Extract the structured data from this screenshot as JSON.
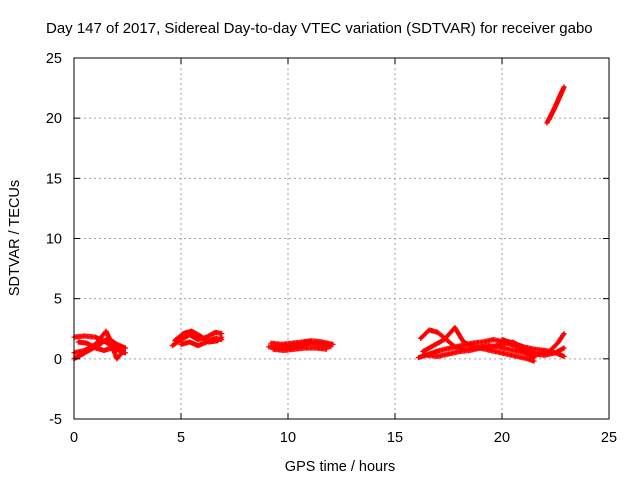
{
  "chart_data": {
    "type": "scatter",
    "title": "Day 147 of 2017, Sidereal Day-to-day VTEC variation (SDTVAR) for receiver gabo",
    "xlabel": "GPS time / hours",
    "ylabel": "SDTVAR / TECUs",
    "xlim": [
      0,
      25
    ],
    "ylim": [
      -5,
      25
    ],
    "x_ticks": [
      0,
      5,
      10,
      15,
      20,
      25
    ],
    "y_ticks": [
      -5,
      0,
      5,
      10,
      15,
      20,
      25
    ],
    "x_tick_labels": [
      "0",
      "5",
      "10",
      "15",
      "20",
      "25"
    ],
    "y_tick_labels": [
      "-5",
      "0",
      "5",
      "10",
      "15",
      "20",
      "25"
    ],
    "grid": true,
    "marker": "plus",
    "colors": {
      "series": "#ff0000",
      "axes": "#000000",
      "grid": "#a0a0a0"
    },
    "series": [
      {
        "tracks": [
          [
            [
              0.0,
              0.0
            ],
            [
              0.4,
              0.4
            ],
            [
              0.8,
              0.8
            ],
            [
              1.2,
              1.2
            ],
            [
              1.6,
              1.7
            ],
            [
              2.0,
              1.2
            ],
            [
              2.4,
              0.9
            ]
          ],
          [
            [
              0.0,
              1.8
            ],
            [
              0.5,
              1.9
            ],
            [
              1.0,
              1.8
            ],
            [
              1.4,
              1.5
            ],
            [
              1.8,
              1.0
            ],
            [
              2.2,
              0.6
            ],
            [
              2.4,
              0.5
            ]
          ],
          [
            [
              0.0,
              0.5
            ],
            [
              0.5,
              0.7
            ],
            [
              1.0,
              1.2
            ],
            [
              1.5,
              2.3
            ],
            [
              1.7,
              1.5
            ],
            [
              2.0,
              0.0
            ],
            [
              2.3,
              0.6
            ]
          ],
          [
            [
              0.2,
              1.4
            ],
            [
              0.6,
              1.3
            ],
            [
              1.0,
              0.9
            ],
            [
              1.4,
              0.7
            ],
            [
              1.8,
              0.9
            ],
            [
              2.2,
              1.0
            ]
          ],
          [
            [
              4.6,
              1.1
            ],
            [
              5.0,
              1.6
            ],
            [
              5.4,
              2.0
            ],
            [
              5.8,
              1.6
            ],
            [
              6.2,
              1.8
            ],
            [
              6.6,
              2.2
            ],
            [
              6.9,
              2.1
            ]
          ],
          [
            [
              4.7,
              1.5
            ],
            [
              5.1,
              2.1
            ],
            [
              5.5,
              2.3
            ],
            [
              5.9,
              1.9
            ],
            [
              6.3,
              1.4
            ],
            [
              6.7,
              1.5
            ],
            [
              6.9,
              1.8
            ]
          ],
          [
            [
              5.0,
              1.2
            ],
            [
              5.4,
              1.4
            ],
            [
              5.8,
              1.1
            ],
            [
              6.2,
              1.4
            ],
            [
              6.6,
              1.7
            ],
            [
              6.9,
              1.6
            ]
          ],
          [
            [
              9.1,
              1.0
            ],
            [
              9.6,
              0.9
            ],
            [
              10.1,
              1.0
            ],
            [
              10.6,
              1.1
            ],
            [
              11.0,
              1.3
            ],
            [
              11.5,
              1.2
            ],
            [
              12.0,
              1.0
            ]
          ],
          [
            [
              9.2,
              1.3
            ],
            [
              9.7,
              1.2
            ],
            [
              10.2,
              1.3
            ],
            [
              10.7,
              1.4
            ],
            [
              11.1,
              1.5
            ],
            [
              11.6,
              1.4
            ],
            [
              12.1,
              1.2
            ]
          ],
          [
            [
              9.3,
              0.8
            ],
            [
              9.8,
              0.7
            ],
            [
              10.3,
              0.8
            ],
            [
              10.8,
              0.9
            ],
            [
              11.3,
              0.9
            ],
            [
              11.8,
              0.8
            ]
          ],
          [
            [
              16.1,
              0.1
            ],
            [
              16.6,
              0.4
            ],
            [
              17.1,
              0.7
            ],
            [
              17.6,
              0.9
            ],
            [
              18.1,
              1.1
            ],
            [
              18.6,
              1.3
            ],
            [
              19.1,
              1.4
            ],
            [
              19.6,
              1.6
            ],
            [
              20.1,
              1.4
            ],
            [
              20.6,
              1.1
            ],
            [
              21.1,
              0.5
            ],
            [
              21.5,
              0.1
            ]
          ],
          [
            [
              16.2,
              1.7
            ],
            [
              16.6,
              2.4
            ],
            [
              17.0,
              2.2
            ],
            [
              17.4,
              1.6
            ],
            [
              17.8,
              1.0
            ],
            [
              18.3,
              0.8
            ],
            [
              18.8,
              0.9
            ],
            [
              19.3,
              1.1
            ],
            [
              19.8,
              1.0
            ],
            [
              20.3,
              0.8
            ],
            [
              20.8,
              0.6
            ],
            [
              21.3,
              0.4
            ],
            [
              21.8,
              0.4
            ],
            [
              22.2,
              0.6
            ],
            [
              22.6,
              1.3
            ],
            [
              22.9,
              2.1
            ]
          ],
          [
            [
              16.3,
              0.6
            ],
            [
              16.8,
              1.1
            ],
            [
              17.3,
              1.6
            ],
            [
              17.8,
              2.6
            ],
            [
              18.2,
              1.4
            ],
            [
              18.7,
              1.0
            ],
            [
              19.2,
              0.8
            ],
            [
              19.7,
              0.6
            ],
            [
              20.2,
              0.4
            ],
            [
              20.7,
              0.2
            ],
            [
              21.2,
              0.0
            ],
            [
              21.5,
              -0.2
            ]
          ],
          [
            [
              16.5,
              0.3
            ],
            [
              17.0,
              0.2
            ],
            [
              17.5,
              0.4
            ],
            [
              18.0,
              0.6
            ],
            [
              18.5,
              0.7
            ],
            [
              19.0,
              0.9
            ],
            [
              19.5,
              1.0
            ],
            [
              20.0,
              1.2
            ],
            [
              20.5,
              1.4
            ],
            [
              21.0,
              0.9
            ],
            [
              21.5,
              0.4
            ],
            [
              22.0,
              0.3
            ],
            [
              22.5,
              0.5
            ],
            [
              22.9,
              0.9
            ]
          ],
          [
            [
              20.0,
              1.6
            ],
            [
              20.5,
              1.3
            ],
            [
              21.0,
              1.0
            ],
            [
              21.5,
              0.8
            ],
            [
              22.0,
              0.7
            ],
            [
              22.5,
              0.5
            ],
            [
              22.9,
              0.2
            ]
          ],
          [
            [
              22.1,
              19.6
            ],
            [
              22.3,
              20.3
            ],
            [
              22.5,
              21.0
            ],
            [
              22.7,
              21.8
            ],
            [
              22.9,
              22.6
            ]
          ],
          [
            [
              22.2,
              19.9
            ],
            [
              22.4,
              20.6
            ],
            [
              22.6,
              21.4
            ],
            [
              22.8,
              22.2
            ]
          ]
        ]
      }
    ]
  }
}
